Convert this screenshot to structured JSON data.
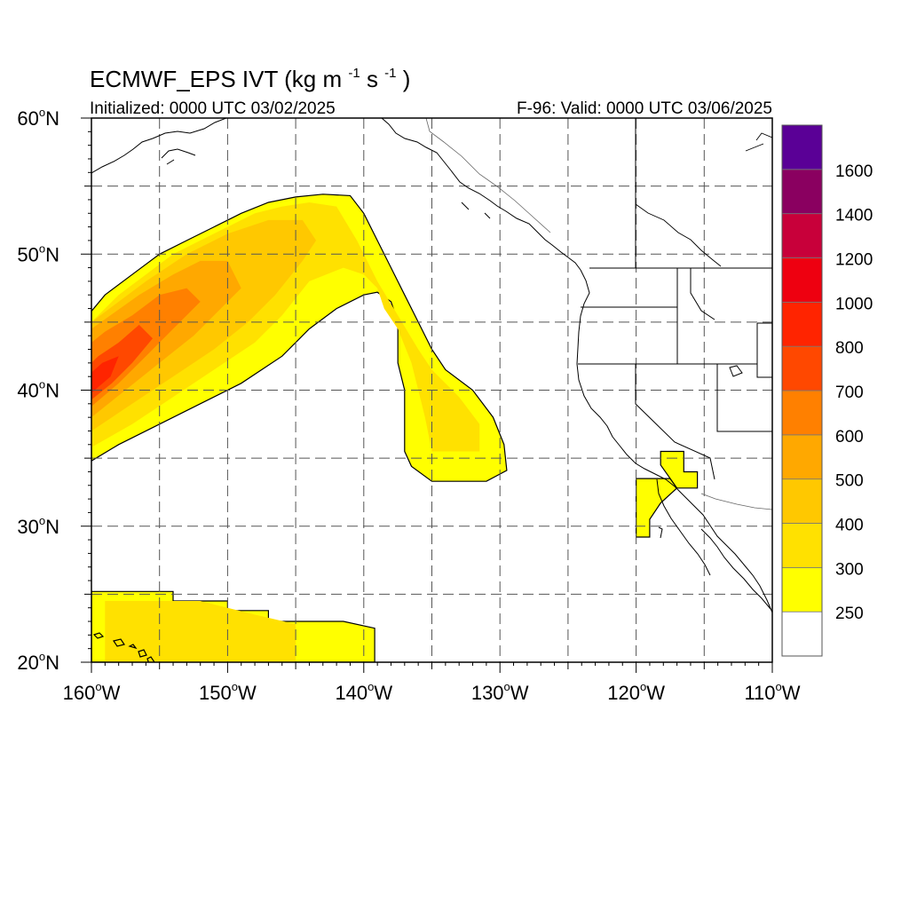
{
  "title": {
    "main": "ECMWF_EPS IVT",
    "units_open": "(kg m",
    "units_exp1": "-1",
    "units_mid": "s",
    "units_exp2": "-1",
    "units_close": ")"
  },
  "subtitle_left": "Initialized: 0000 UTC 03/02/2025",
  "subtitle_right": "F-96: Valid: 0000 UTC 03/06/2025",
  "map": {
    "projection": "cylindrical equidistant",
    "lon_range": [
      -160,
      -110
    ],
    "lat_range": [
      20,
      60
    ],
    "gridlines": "dashed every 5 degrees",
    "x_ticks": [
      {
        "value": -160,
        "label": "160",
        "suffix": "W"
      },
      {
        "value": -150,
        "label": "150",
        "suffix": "W"
      },
      {
        "value": -140,
        "label": "140",
        "suffix": "W"
      },
      {
        "value": -130,
        "label": "130",
        "suffix": "W"
      },
      {
        "value": -120,
        "label": "120",
        "suffix": "W"
      },
      {
        "value": -110,
        "label": "110",
        "suffix": "W"
      }
    ],
    "y_ticks": [
      {
        "value": 60,
        "label": "60",
        "suffix": "N"
      },
      {
        "value": 50,
        "label": "50",
        "suffix": "N"
      },
      {
        "value": 40,
        "label": "40",
        "suffix": "N"
      },
      {
        "value": 30,
        "label": "30",
        "suffix": "N"
      },
      {
        "value": 20,
        "label": "20",
        "suffix": "N"
      }
    ],
    "degree_symbol": "o"
  },
  "ivt_regions": [
    {
      "name": "atmospheric-river-250",
      "color": "#ffff00",
      "points": [
        [
          -160,
          34.8
        ],
        [
          -158,
          36
        ],
        [
          -155,
          37.5
        ],
        [
          -152,
          39
        ],
        [
          -149,
          40.5
        ],
        [
          -146,
          42.5
        ],
        [
          -144,
          44.5
        ],
        [
          -142,
          46
        ],
        [
          -140,
          47
        ],
        [
          -139,
          47.2
        ],
        [
          -138,
          46.5
        ],
        [
          -137.5,
          45
        ],
        [
          -137.5,
          42
        ],
        [
          -137,
          40
        ],
        [
          -137,
          35.5
        ],
        [
          -136.5,
          34.4
        ],
        [
          -135,
          33.3
        ],
        [
          -131,
          33.3
        ],
        [
          -129.5,
          34.1
        ],
        [
          -129.7,
          36
        ],
        [
          -130.5,
          38
        ],
        [
          -132,
          40
        ],
        [
          -134,
          41.5
        ],
        [
          -135,
          43
        ],
        [
          -136,
          45
        ],
        [
          -137,
          47
        ],
        [
          -138,
          49
        ],
        [
          -139,
          51
        ],
        [
          -140,
          53
        ],
        [
          -141,
          54.3
        ],
        [
          -143,
          54.4
        ],
        [
          -145,
          54.2
        ],
        [
          -147,
          53.8
        ],
        [
          -149,
          53
        ],
        [
          -151,
          52
        ],
        [
          -153,
          51
        ],
        [
          -155,
          50
        ],
        [
          -157,
          48.5
        ],
        [
          -159,
          47
        ],
        [
          -160,
          45.8
        ]
      ]
    },
    {
      "name": "atmospheric-river-300",
      "color": "#ffe100",
      "points": [
        [
          -160,
          35.8
        ],
        [
          -157,
          37.5
        ],
        [
          -154,
          39.5
        ],
        [
          -151,
          41.5
        ],
        [
          -148,
          43.5
        ],
        [
          -146,
          45.5
        ],
        [
          -144,
          48
        ],
        [
          -141.5,
          49
        ],
        [
          -140,
          48.5
        ],
        [
          -139,
          47.5
        ],
        [
          -138.5,
          46
        ],
        [
          -137.5,
          44.5
        ],
        [
          -136.5,
          42
        ],
        [
          -136,
          40
        ],
        [
          -135.5,
          38
        ],
        [
          -135,
          35.5
        ],
        [
          -131.5,
          35.5
        ],
        [
          -131.5,
          37.5
        ],
        [
          -133,
          39.5
        ],
        [
          -135,
          41.5
        ],
        [
          -136,
          43
        ],
        [
          -137.5,
          45.5
        ],
        [
          -139,
          48
        ],
        [
          -140.5,
          51
        ],
        [
          -142,
          53.5
        ],
        [
          -144,
          53.8
        ],
        [
          -146,
          53.5
        ],
        [
          -148,
          53
        ],
        [
          -150,
          52
        ],
        [
          -152,
          51
        ],
        [
          -154,
          50
        ],
        [
          -156,
          48.5
        ],
        [
          -158,
          47
        ],
        [
          -160,
          45
        ]
      ]
    },
    {
      "name": "atmospheric-river-400",
      "color": "#ffc800",
      "points": [
        [
          -160,
          37
        ],
        [
          -157,
          39
        ],
        [
          -154,
          41
        ],
        [
          -151,
          43
        ],
        [
          -148.5,
          45
        ],
        [
          -146.5,
          47
        ],
        [
          -144.5,
          49.5
        ],
        [
          -143.5,
          51
        ],
        [
          -144.5,
          52.5
        ],
        [
          -147,
          52.5
        ],
        [
          -150,
          51.5
        ],
        [
          -153,
          50
        ],
        [
          -156,
          48
        ],
        [
          -158,
          46.5
        ],
        [
          -160,
          45
        ]
      ]
    },
    {
      "name": "atmospheric-river-500",
      "color": "#ffa800",
      "points": [
        [
          -160,
          38
        ],
        [
          -157.5,
          40
        ],
        [
          -155,
          42
        ],
        [
          -152.5,
          44
        ],
        [
          -150.5,
          46
        ],
        [
          -149,
          47.5
        ],
        [
          -150,
          49.5
        ],
        [
          -152,
          49.5
        ],
        [
          -154,
          48.5
        ],
        [
          -156.5,
          47
        ],
        [
          -160,
          44.5
        ]
      ]
    },
    {
      "name": "atmospheric-river-600",
      "color": "#ff8000",
      "points": [
        [
          -160,
          38.8
        ],
        [
          -158,
          40.5
        ],
        [
          -156,
          42.5
        ],
        [
          -154,
          44.5
        ],
        [
          -152,
          46.5
        ],
        [
          -153,
          47.5
        ],
        [
          -155,
          47
        ],
        [
          -157,
          45.5
        ],
        [
          -159,
          44.3
        ],
        [
          -160,
          43.5
        ]
      ]
    },
    {
      "name": "atmospheric-river-700",
      "color": "#ff4800",
      "points": [
        [
          -160,
          39.3
        ],
        [
          -158.5,
          40.5
        ],
        [
          -157,
          42
        ],
        [
          -155.5,
          43.8
        ],
        [
          -156.5,
          44.8
        ],
        [
          -158,
          43.5
        ],
        [
          -159.5,
          42.5
        ],
        [
          -160,
          42
        ]
      ]
    },
    {
      "name": "atmospheric-river-800",
      "color": "#ff2400",
      "points": [
        [
          -160,
          39.8
        ],
        [
          -158.6,
          41
        ],
        [
          -158,
          42.5
        ],
        [
          -159.2,
          42
        ],
        [
          -160,
          41.3
        ]
      ]
    },
    {
      "name": "baja-plume-250",
      "color": "#ffff00",
      "points": [
        [
          -120,
          33.5
        ],
        [
          -118,
          33.5
        ],
        [
          -117.5,
          33.5
        ],
        [
          -117,
          32.8
        ],
        [
          -118.2,
          31.7
        ],
        [
          -119,
          30.5
        ],
        [
          -119,
          29.2
        ],
        [
          -120,
          29.2
        ]
      ]
    },
    {
      "name": "socal-patch-250",
      "color": "#ffff00",
      "points": [
        [
          -118.2,
          35.5
        ],
        [
          -116.5,
          35.5
        ],
        [
          -116.5,
          34
        ],
        [
          -115.5,
          34
        ],
        [
          -115.5,
          32.8
        ],
        [
          -117,
          32.8
        ],
        [
          -118.2,
          34.5
        ]
      ]
    },
    {
      "name": "hawaii-band-250",
      "color": "#ffff00",
      "points": [
        [
          -160,
          25.2
        ],
        [
          -154,
          25.2
        ],
        [
          -154,
          24.5
        ],
        [
          -150,
          24.5
        ],
        [
          -150,
          23.8
        ],
        [
          -147,
          23.8
        ],
        [
          -147,
          23
        ],
        [
          -141.5,
          23
        ],
        [
          -139.2,
          22.5
        ],
        [
          -139.2,
          20
        ],
        [
          -160,
          20
        ]
      ]
    },
    {
      "name": "hawaii-band-300",
      "color": "#ffe100",
      "points": [
        [
          -159,
          24.5
        ],
        [
          -152,
          24.5
        ],
        [
          -148,
          23.5
        ],
        [
          -145,
          22.8
        ],
        [
          -145,
          20
        ],
        [
          -159,
          20
        ]
      ]
    }
  ],
  "legend": {
    "type": "labelbar",
    "orientation": "vertical",
    "levels": [
      {
        "label": "",
        "color": "#ffffff"
      },
      {
        "label": "250",
        "color": "#ffff00"
      },
      {
        "label": "300",
        "color": "#ffe100"
      },
      {
        "label": "400",
        "color": "#ffc800"
      },
      {
        "label": "500",
        "color": "#ffa800"
      },
      {
        "label": "600",
        "color": "#ff8000"
      },
      {
        "label": "700",
        "color": "#ff4800"
      },
      {
        "label": "800",
        "color": "#ff2400"
      },
      {
        "label": "1000",
        "color": "#ee0010"
      },
      {
        "label": "1200",
        "color": "#c8003a"
      },
      {
        "label": "1400",
        "color": "#8a0060"
      },
      {
        "label": "1600",
        "color": "#5a0096"
      }
    ]
  },
  "coastline_color": "#000000",
  "border_color": "#000000"
}
